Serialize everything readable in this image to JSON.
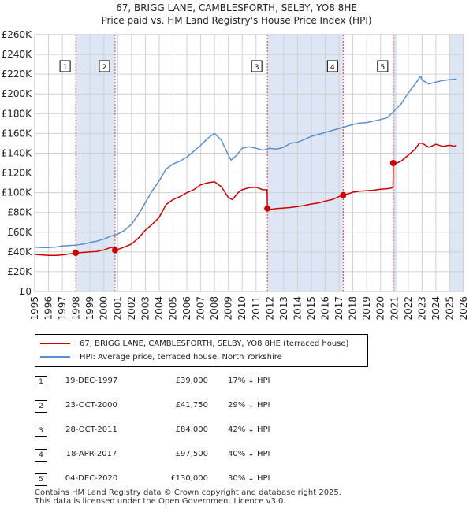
{
  "header": {
    "title_line1": "67, BRIGG LANE, CAMBLESFORTH, SELBY, YO8 8HE",
    "title_line2": "Price paid vs. HM Land Registry's House Price Index (HPI)"
  },
  "legend": {
    "property_label": "67, BRIGG LANE, CAMBLESFORTH, SELBY, YO8 8HE (terraced house)",
    "hpi_label": "HPI: Average price, terraced house, North Yorkshire"
  },
  "colors": {
    "property": "#cc0000",
    "hpi": "#5b8fcf",
    "shade": "#dde6f4",
    "grid": "#d0d0d0",
    "vline": "#cc0000"
  },
  "sales": [
    {
      "num": "1",
      "date": "19-DEC-1997",
      "price": "£39,000",
      "hpi": "17% ↓ HPI"
    },
    {
      "num": "2",
      "date": "23-OCT-2000",
      "price": "£41,750",
      "hpi": "29% ↓ HPI"
    },
    {
      "num": "3",
      "date": "28-OCT-2011",
      "price": "£84,000",
      "hpi": "42% ↓ HPI"
    },
    {
      "num": "4",
      "date": "18-APR-2017",
      "price": "£97,500",
      "hpi": "40% ↓ HPI"
    },
    {
      "num": "5",
      "date": "04-DEC-2020",
      "price": "£130,000",
      "hpi": "30% ↓ HPI"
    }
  ],
  "footer": {
    "line1": "Contains HM Land Registry data © Crown copyright and database right 2025.",
    "line2": "This data is licensed under the Open Government Licence v3.0."
  },
  "chart_data": {
    "type": "line",
    "xlim": [
      1995,
      2026
    ],
    "ylim": [
      0,
      260000
    ],
    "x_ticks": [
      "1995",
      "1996",
      "1997",
      "1998",
      "1999",
      "2000",
      "2001",
      "2002",
      "2003",
      "2004",
      "2005",
      "2006",
      "2007",
      "2008",
      "2009",
      "2010",
      "2011",
      "2012",
      "2013",
      "2014",
      "2015",
      "2016",
      "2017",
      "2018",
      "2019",
      "2020",
      "2021",
      "2022",
      "2023",
      "2024",
      "2025",
      "2026"
    ],
    "y_ticks": [
      {
        "value": 0,
        "label": "£0"
      },
      {
        "value": 20000,
        "label": "£20K"
      },
      {
        "value": 40000,
        "label": "£40K"
      },
      {
        "value": 60000,
        "label": "£60K"
      },
      {
        "value": 80000,
        "label": "£80K"
      },
      {
        "value": 100000,
        "label": "£100K"
      },
      {
        "value": 120000,
        "label": "£120K"
      },
      {
        "value": 140000,
        "label": "£140K"
      },
      {
        "value": 160000,
        "label": "£160K"
      },
      {
        "value": 180000,
        "label": "£180K"
      },
      {
        "value": 200000,
        "label": "£200K"
      },
      {
        "value": 220000,
        "label": "£220K"
      },
      {
        "value": 240000,
        "label": "£240K"
      },
      {
        "value": 260000,
        "label": "£260K"
      }
    ],
    "shaded_ranges": [
      [
        1997.97,
        2000.81
      ],
      [
        2011.82,
        2017.3
      ],
      [
        2020.92,
        2021.2
      ],
      [
        2025.0,
        2026.0
      ]
    ],
    "sale_markers": [
      {
        "label": "1",
        "x": 1997.97,
        "y": 39000
      },
      {
        "label": "2",
        "x": 2000.81,
        "y": 41750
      },
      {
        "label": "3",
        "x": 2011.82,
        "y": 84000
      },
      {
        "label": "4",
        "x": 2017.3,
        "y": 97500
      },
      {
        "label": "5",
        "x": 2020.92,
        "y": 130000
      }
    ],
    "series": [
      {
        "name": "67, BRIGG LANE, CAMBLESFORTH, SELBY, YO8 8HE (terraced house)",
        "points": [
          [
            1995.0,
            37500
          ],
          [
            1995.5,
            37000
          ],
          [
            1996.0,
            36500
          ],
          [
            1996.5,
            36500
          ],
          [
            1997.0,
            37000
          ],
          [
            1997.5,
            38000
          ],
          [
            1997.97,
            39000
          ],
          [
            1998.5,
            39500
          ],
          [
            1999.0,
            40000
          ],
          [
            1999.5,
            40500
          ],
          [
            2000.0,
            42000
          ],
          [
            2000.5,
            44500
          ],
          [
            2000.8,
            45000
          ],
          [
            2000.81,
            41750
          ],
          [
            2001.0,
            42500
          ],
          [
            2001.5,
            45000
          ],
          [
            2002.0,
            48000
          ],
          [
            2002.5,
            54000
          ],
          [
            2003.0,
            62000
          ],
          [
            2003.5,
            68000
          ],
          [
            2004.0,
            75000
          ],
          [
            2004.5,
            88000
          ],
          [
            2005.0,
            93000
          ],
          [
            2005.5,
            96000
          ],
          [
            2006.0,
            100000
          ],
          [
            2006.5,
            103000
          ],
          [
            2007.0,
            108000
          ],
          [
            2007.5,
            110000
          ],
          [
            2008.0,
            111000
          ],
          [
            2008.5,
            106000
          ],
          [
            2009.0,
            95000
          ],
          [
            2009.3,
            93000
          ],
          [
            2009.7,
            100000
          ],
          [
            2010.0,
            103000
          ],
          [
            2010.5,
            105000
          ],
          [
            2011.0,
            105500
          ],
          [
            2011.5,
            103000
          ],
          [
            2011.8,
            103000
          ],
          [
            2011.82,
            84000
          ],
          [
            2012.0,
            83000
          ],
          [
            2012.5,
            84000
          ],
          [
            2013.0,
            84500
          ],
          [
            2013.5,
            85000
          ],
          [
            2014.0,
            86000
          ],
          [
            2014.5,
            87000
          ],
          [
            2015.0,
            88500
          ],
          [
            2015.5,
            89500
          ],
          [
            2016.0,
            91500
          ],
          [
            2016.5,
            93000
          ],
          [
            2017.0,
            96000
          ],
          [
            2017.3,
            97500
          ],
          [
            2017.7,
            99000
          ],
          [
            2018.0,
            100500
          ],
          [
            2018.5,
            101500
          ],
          [
            2019.0,
            102000
          ],
          [
            2019.5,
            102500
          ],
          [
            2020.0,
            103500
          ],
          [
            2020.5,
            104000
          ],
          [
            2020.9,
            105000
          ],
          [
            2020.92,
            130000
          ],
          [
            2021.0,
            129000
          ],
          [
            2021.5,
            132000
          ],
          [
            2022.0,
            138000
          ],
          [
            2022.5,
            144000
          ],
          [
            2022.8,
            150000
          ],
          [
            2023.0,
            150000
          ],
          [
            2023.5,
            146000
          ],
          [
            2024.0,
            149000
          ],
          [
            2024.5,
            147000
          ],
          [
            2025.0,
            148000
          ],
          [
            2025.3,
            147000
          ],
          [
            2025.5,
            148000
          ]
        ]
      },
      {
        "name": "HPI: Average price, terraced house, North Yorkshire",
        "points": [
          [
            1995.0,
            45000
          ],
          [
            1995.5,
            44500
          ],
          [
            1996.0,
            44500
          ],
          [
            1996.5,
            45000
          ],
          [
            1997.0,
            46000
          ],
          [
            1997.5,
            46500
          ],
          [
            1998.0,
            47000
          ],
          [
            1998.5,
            48000
          ],
          [
            1999.0,
            49500
          ],
          [
            1999.5,
            51000
          ],
          [
            2000.0,
            53000
          ],
          [
            2000.5,
            56000
          ],
          [
            2001.0,
            58000
          ],
          [
            2001.5,
            62000
          ],
          [
            2002.0,
            68000
          ],
          [
            2002.5,
            78000
          ],
          [
            2003.0,
            90000
          ],
          [
            2003.5,
            102000
          ],
          [
            2004.0,
            112000
          ],
          [
            2004.5,
            124000
          ],
          [
            2005.0,
            129000
          ],
          [
            2005.5,
            132000
          ],
          [
            2006.0,
            136000
          ],
          [
            2006.5,
            142000
          ],
          [
            2007.0,
            148000
          ],
          [
            2007.5,
            155000
          ],
          [
            2008.0,
            160000
          ],
          [
            2008.5,
            153000
          ],
          [
            2009.0,
            138000
          ],
          [
            2009.2,
            133000
          ],
          [
            2009.6,
            138000
          ],
          [
            2010.0,
            145000
          ],
          [
            2010.5,
            146500
          ],
          [
            2011.0,
            145000
          ],
          [
            2011.5,
            143000
          ],
          [
            2012.0,
            145000
          ],
          [
            2012.5,
            144000
          ],
          [
            2013.0,
            146000
          ],
          [
            2013.5,
            150000
          ],
          [
            2014.0,
            151000
          ],
          [
            2014.5,
            154000
          ],
          [
            2015.0,
            157000
          ],
          [
            2015.5,
            159000
          ],
          [
            2016.0,
            161000
          ],
          [
            2016.5,
            163000
          ],
          [
            2017.0,
            165000
          ],
          [
            2017.5,
            167000
          ],
          [
            2018.0,
            169000
          ],
          [
            2018.5,
            170500
          ],
          [
            2019.0,
            171000
          ],
          [
            2019.5,
            172500
          ],
          [
            2020.0,
            174000
          ],
          [
            2020.5,
            176000
          ],
          [
            2021.0,
            183000
          ],
          [
            2021.5,
            190000
          ],
          [
            2022.0,
            201000
          ],
          [
            2022.5,
            210000
          ],
          [
            2022.9,
            218000
          ],
          [
            2023.0,
            214000
          ],
          [
            2023.5,
            210000
          ],
          [
            2024.0,
            212000
          ],
          [
            2024.5,
            213500
          ],
          [
            2025.0,
            214500
          ],
          [
            2025.5,
            215000
          ]
        ]
      }
    ]
  }
}
